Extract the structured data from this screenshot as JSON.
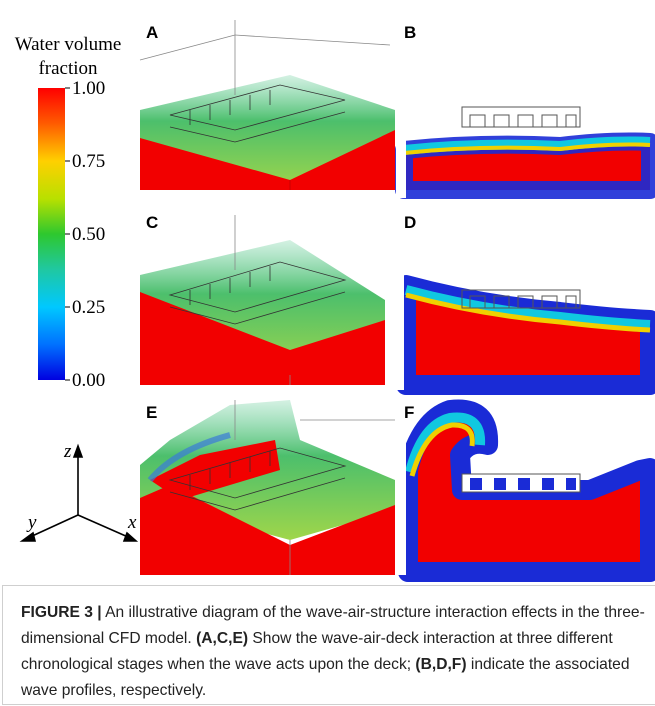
{
  "colorbar": {
    "title": [
      "Water volume",
      "fraction"
    ],
    "ticks": [
      {
        "value": 1,
        "label": "1.00"
      },
      {
        "value": 0.75,
        "label": "0.75"
      },
      {
        "value": 0.5,
        "label": "0.50"
      },
      {
        "value": 0.25,
        "label": "0.25"
      },
      {
        "value": 0,
        "label": "0.00"
      }
    ],
    "range": [
      0,
      1
    ]
  },
  "axes": {
    "z": "z",
    "y": "y",
    "x": "x"
  },
  "panels": [
    "A",
    "B",
    "C",
    "D",
    "E",
    "F"
  ],
  "caption": [
    {
      "text": "FIGURE 3 |",
      "bold": true
    },
    {
      "text": " An illustrative diagram of the wave-air-structure interaction effects in the three-dimensional CFD model. ",
      "bold": false
    },
    {
      "text": "(A,C,E)",
      "bold": true
    },
    {
      "text": " Show the wave-air-deck interaction at three different chronological stages when the wave acts upon the deck; ",
      "bold": false
    },
    {
      "text": "(B,D,F)",
      "bold": true
    },
    {
      "text": " indicate the associated wave profiles, respectively.",
      "bold": false
    }
  ]
}
